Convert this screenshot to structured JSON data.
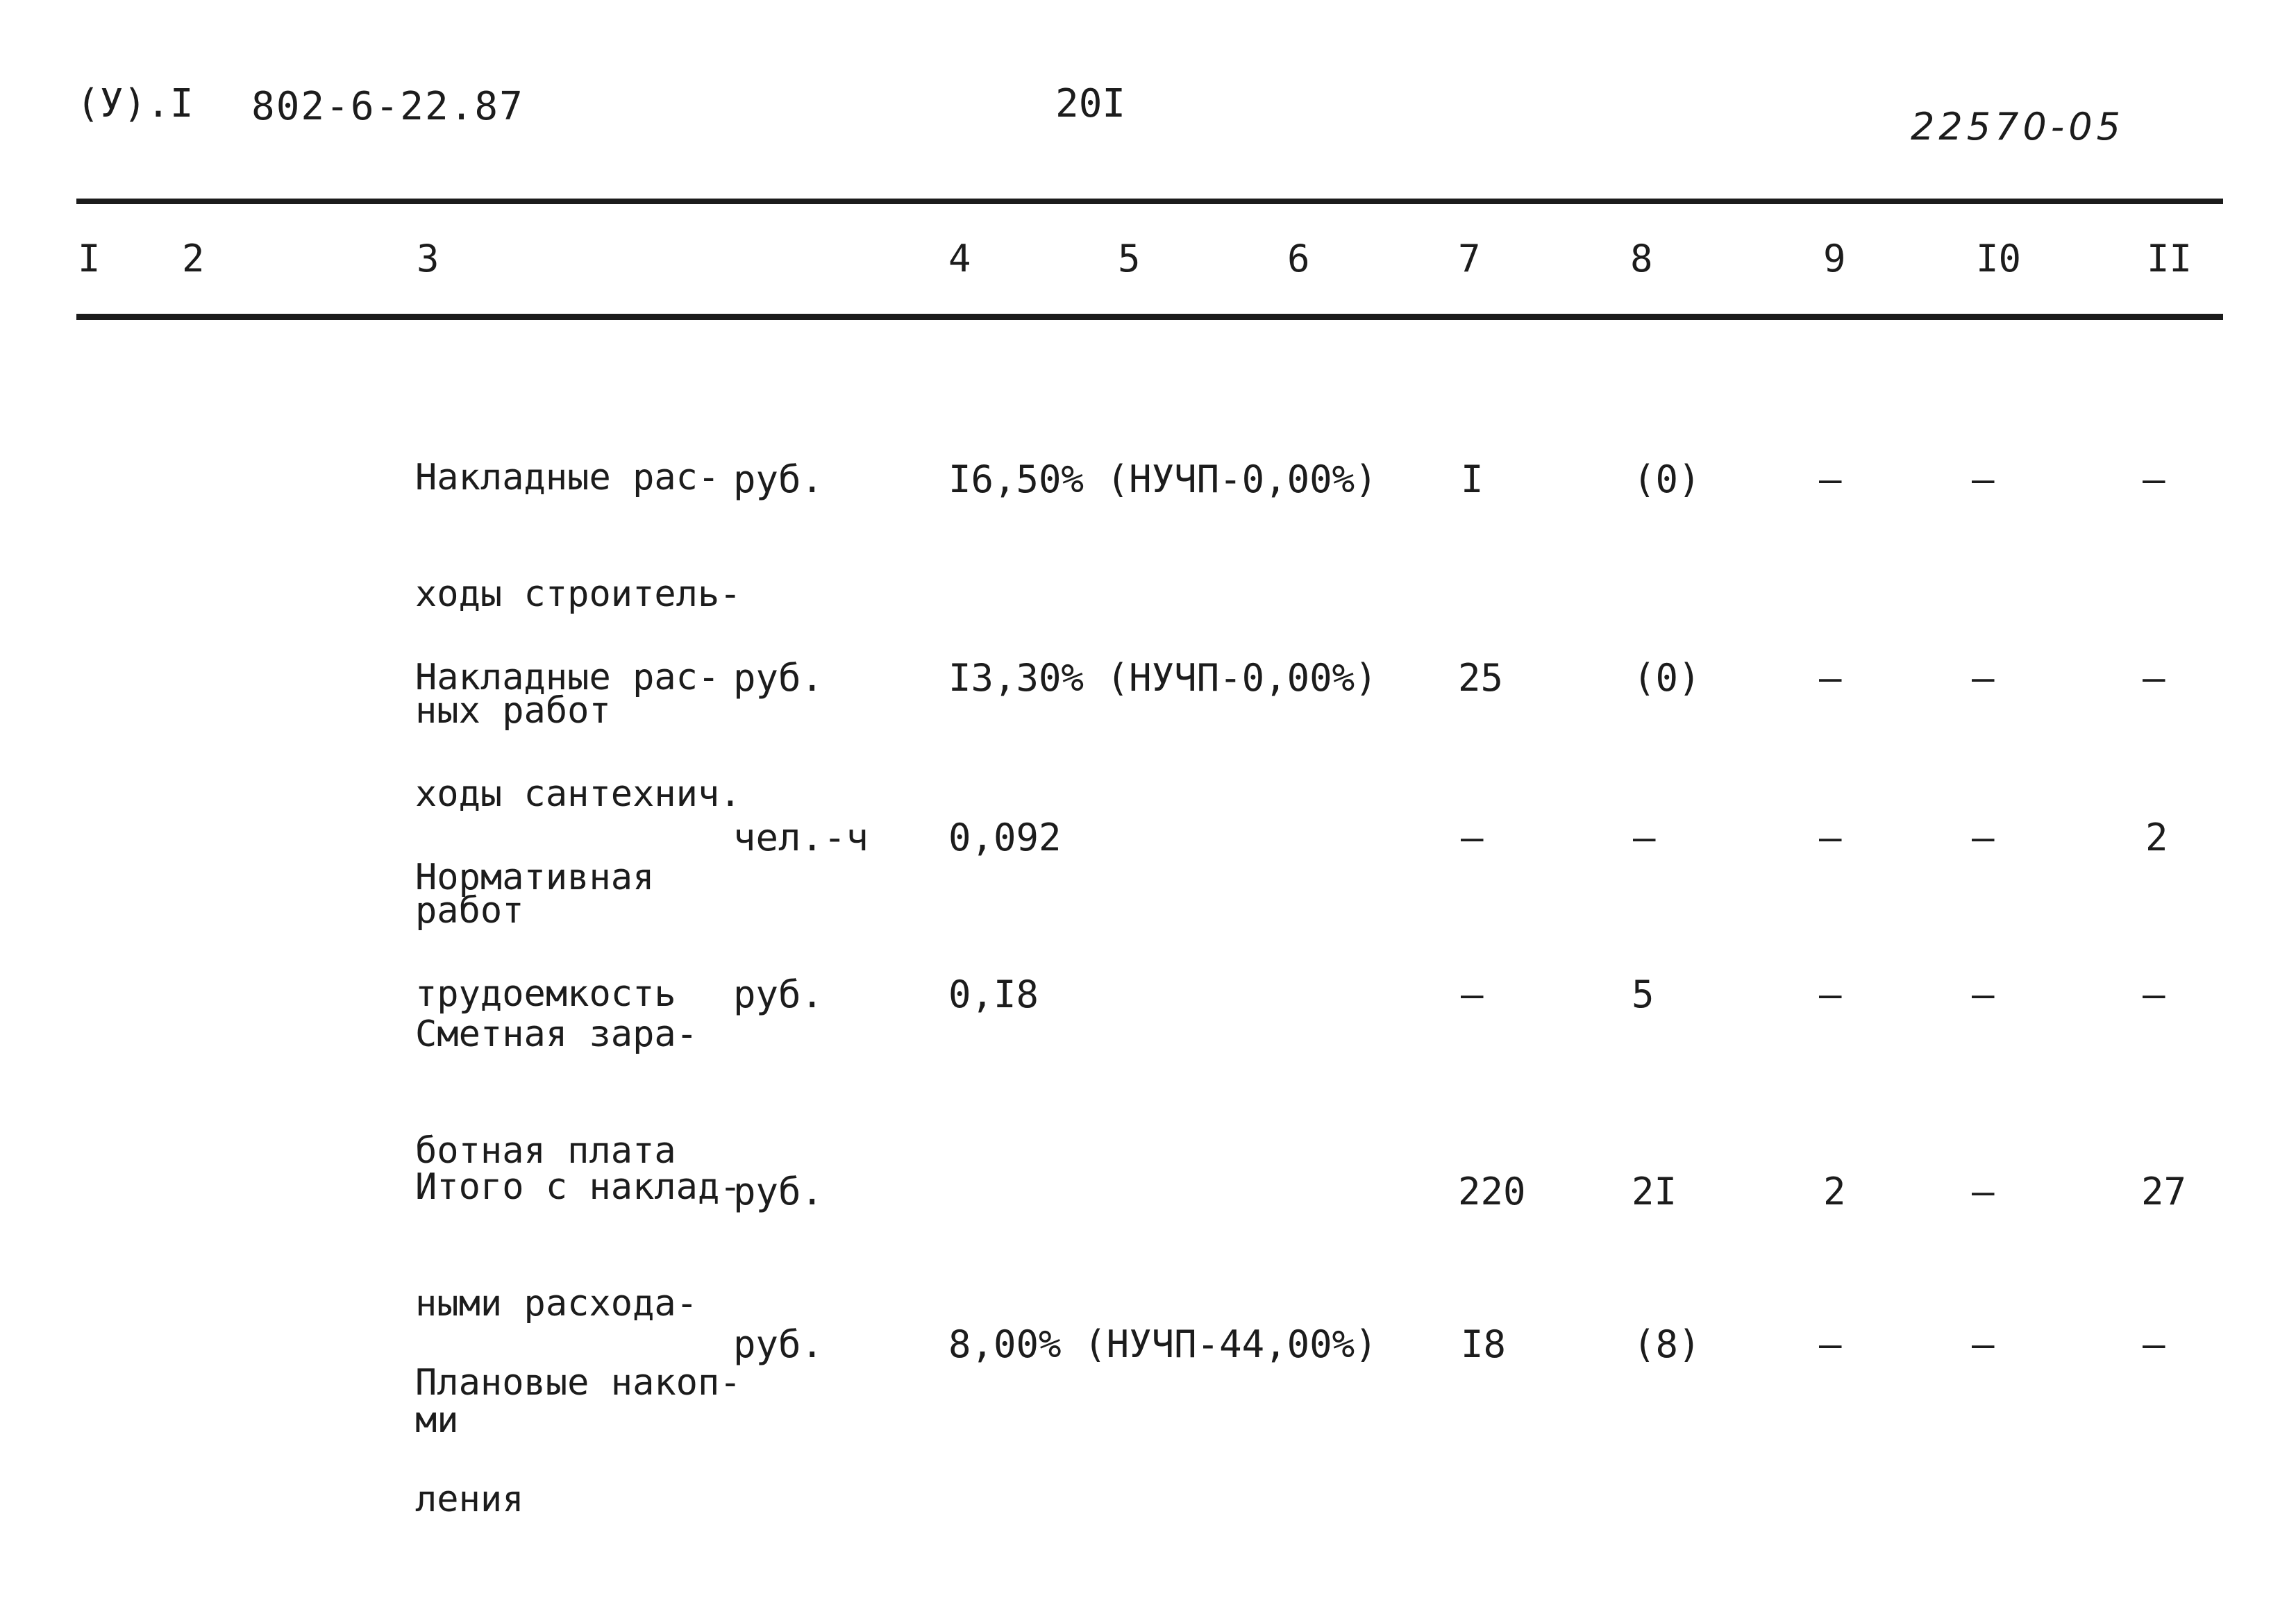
{
  "header": {
    "code": "(У).I",
    "series": "802-6-22.87",
    "page_number": "20I",
    "document_number": "22570-05"
  },
  "columns": [
    "I",
    "2",
    "3",
    "4",
    "5",
    "6",
    "7",
    "8",
    "9",
    "I0",
    "II"
  ],
  "rows": [
    {
      "description": [
        "Накладные рас-",
        "ходы строитель-",
        "ных работ"
      ],
      "unit": "руб.",
      "norm": "I6,50% (НУЧП-0,00%)",
      "c7": "I",
      "c8": "(0)",
      "c9": "–",
      "c10": "–",
      "c11": "–"
    },
    {
      "description": [
        "Накладные рас-",
        "ходы сантехнич.",
        "работ"
      ],
      "unit": "руб.",
      "norm": "I3,30% (НУЧП-0,00%)",
      "c7": "25",
      "c8": "(0)",
      "c9": "–",
      "c10": "–",
      "c11": "–"
    },
    {
      "description": [
        "Нормативная",
        "трудоемкость"
      ],
      "unit": "чел.-ч",
      "norm": "0,092",
      "c7": "–",
      "c8": "–",
      "c9": "–",
      "c10": "–",
      "c11": "2"
    },
    {
      "description": [
        "Сметная зара-",
        "ботная плата"
      ],
      "unit": "руб.",
      "norm": "0,I8",
      "c7": "–",
      "c8": "5",
      "c9": "–",
      "c10": "–",
      "c11": "–"
    },
    {
      "description": [
        "Итого с наклад-",
        "ными расхода-",
        "ми"
      ],
      "unit": "руб.",
      "norm": "",
      "c7": "220",
      "c8": "2I",
      "c9": "2",
      "c10": "–",
      "c11": "27"
    },
    {
      "description": [
        "Плановые накоп-",
        "ления"
      ],
      "unit": "руб.",
      "norm": "8,00% (НУЧП-44,00%)",
      "c7": "I8",
      "c8": "(8)",
      "c9": "–",
      "c10": "–",
      "c11": "–"
    }
  ]
}
